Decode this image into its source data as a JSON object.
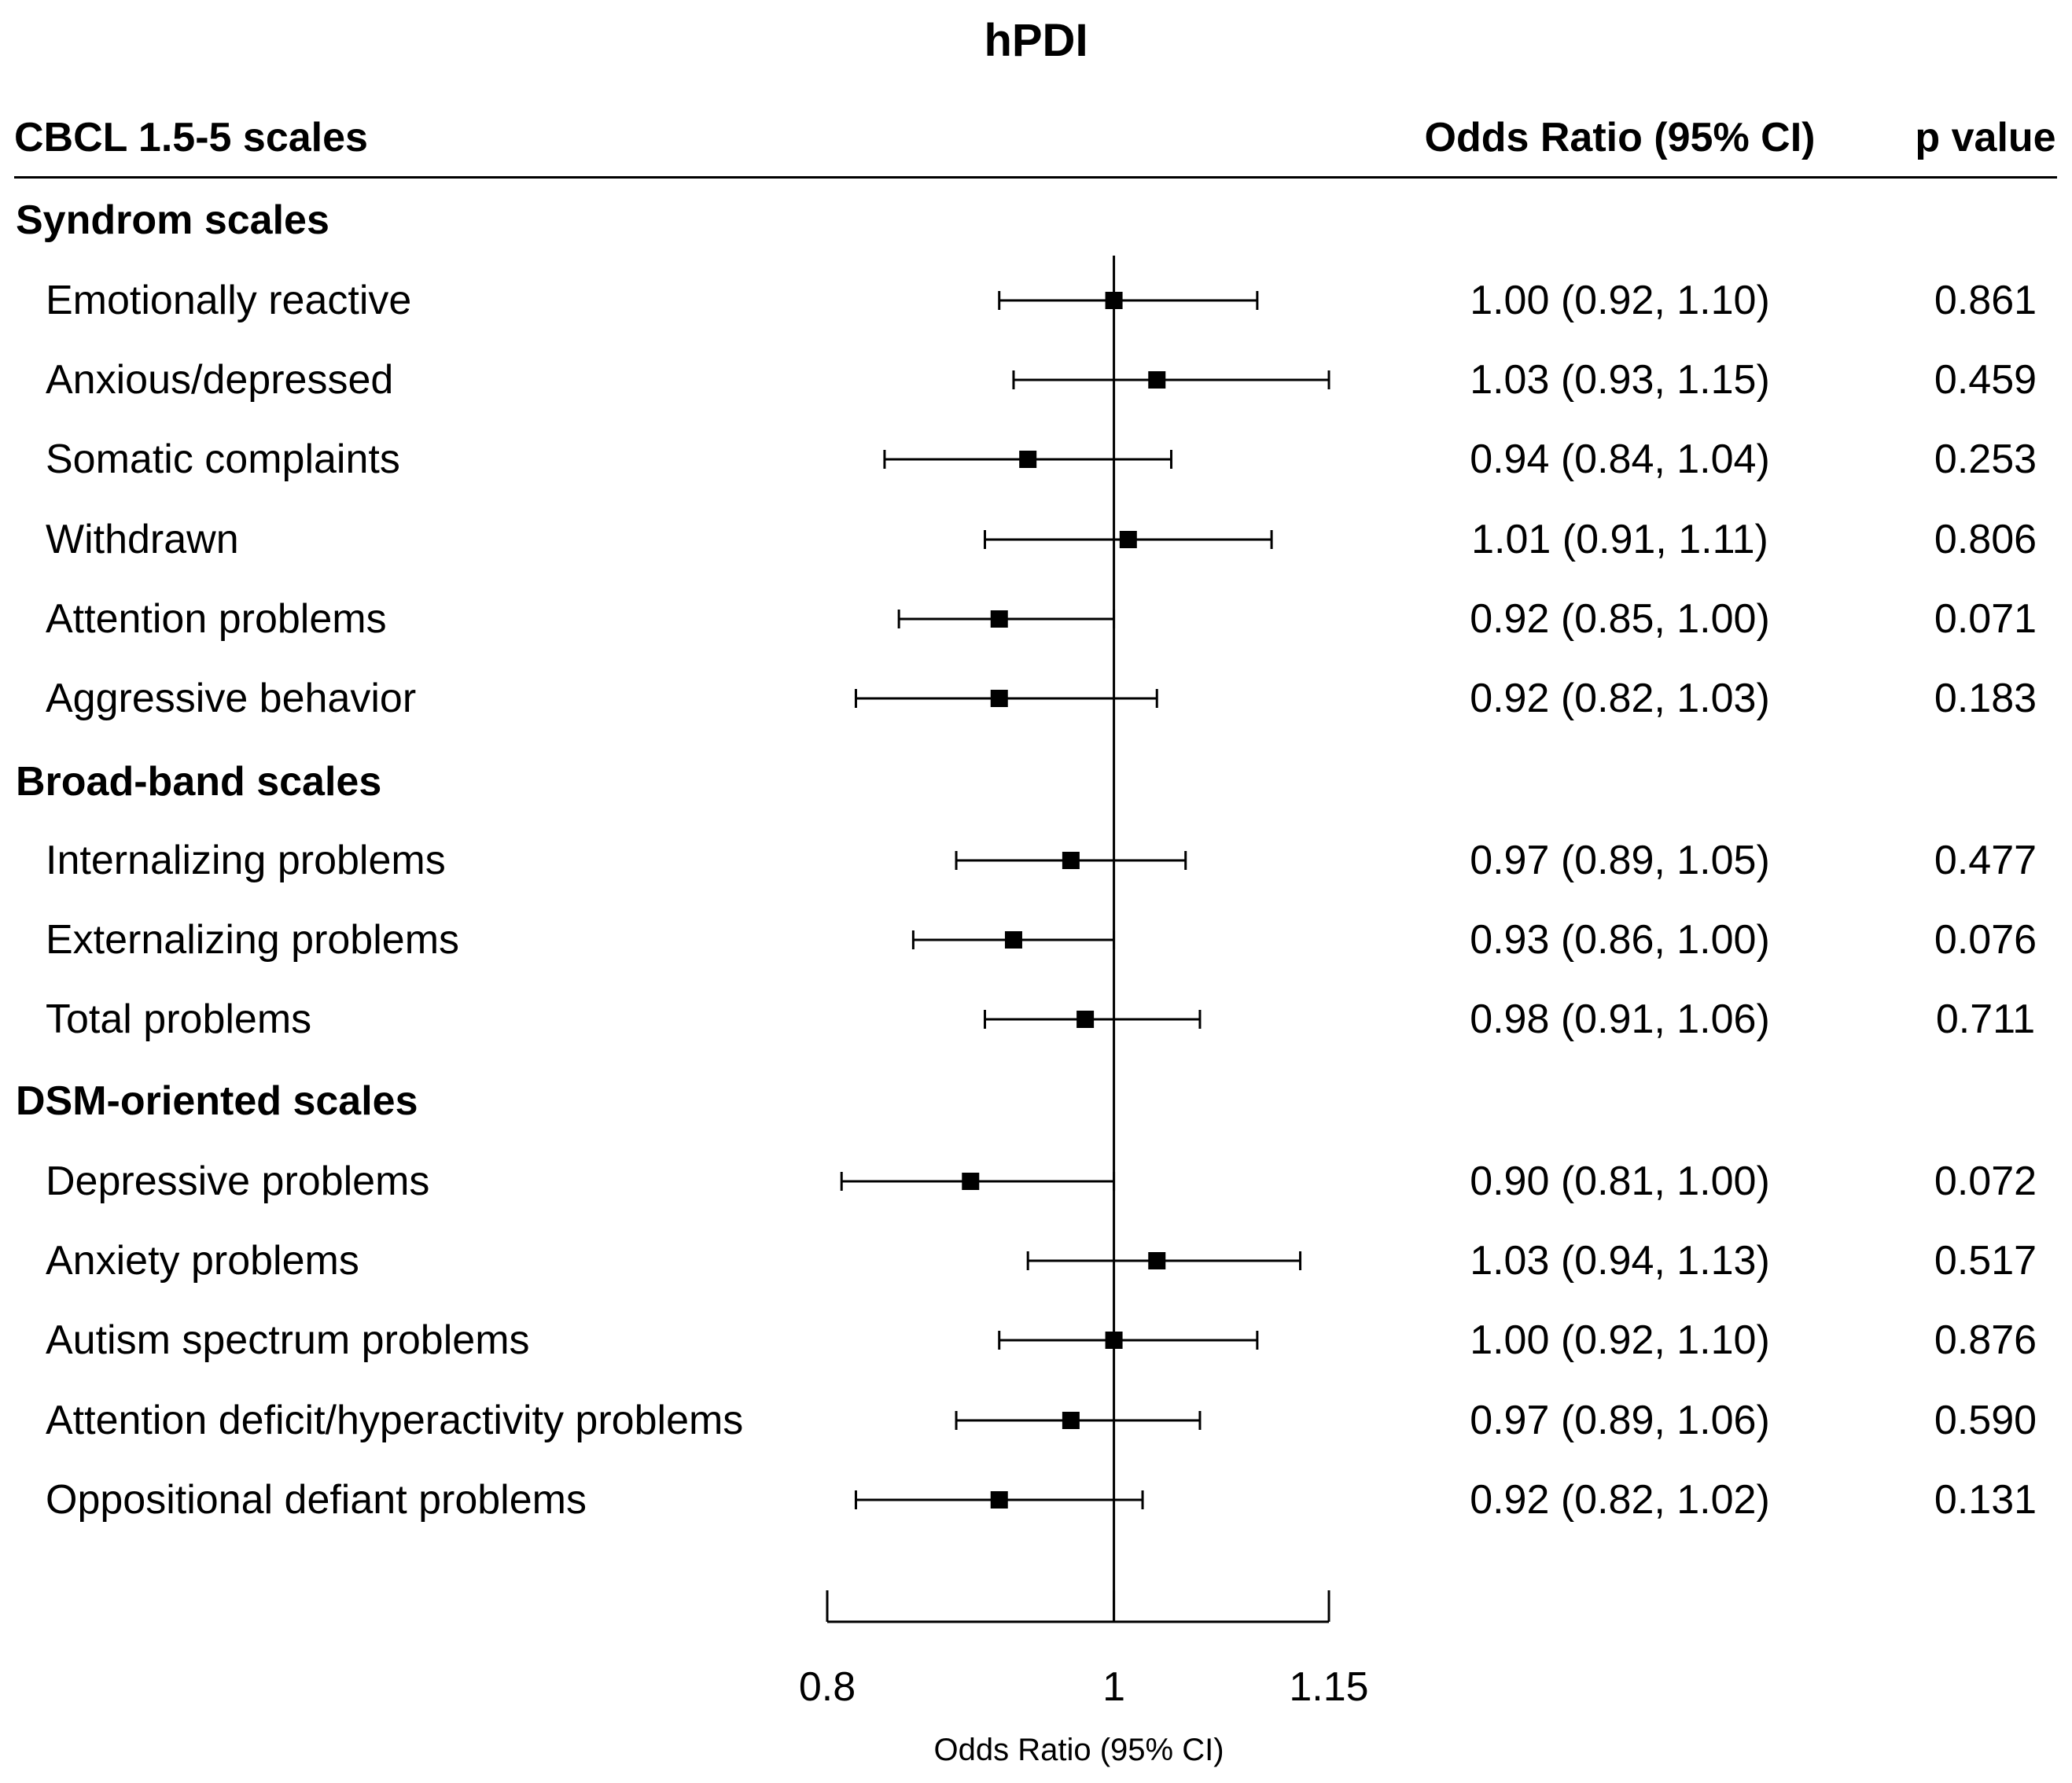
{
  "chart_data": {
    "type": "forest",
    "title": "hPDI",
    "columns": {
      "label": "CBCL 1.5-5 scales",
      "estimate": "Odds Ratio (95% CI)",
      "p": "p value"
    },
    "xlabel": "Odds Ratio (95% CI)",
    "reference_line": 1,
    "xlim": [
      0.8,
      1.15
    ],
    "xticks": [
      {
        "value": 0.8,
        "label": "0.8"
      },
      {
        "value": 1,
        "label": "1"
      },
      {
        "value": 1.15,
        "label": "1.15"
      }
    ],
    "groups": [
      {
        "name": "Syndrom scales",
        "rows": [
          {
            "label": "Emotionally reactive",
            "or": 1.0,
            "lo": 0.92,
            "hi": 1.1,
            "text": "1.00 (0.92, 1.10)",
            "p": "0.861"
          },
          {
            "label": "Anxious/depressed",
            "or": 1.03,
            "lo": 0.93,
            "hi": 1.15,
            "text": "1.03 (0.93, 1.15)",
            "p": "0.459"
          },
          {
            "label": "Somatic complaints",
            "or": 0.94,
            "lo": 0.84,
            "hi": 1.04,
            "text": "0.94 (0.84, 1.04)",
            "p": "0.253"
          },
          {
            "label": "Withdrawn",
            "or": 1.01,
            "lo": 0.91,
            "hi": 1.11,
            "text": "1.01 (0.91, 1.11)",
            "p": "0.806"
          },
          {
            "label": "Attention problems",
            "or": 0.92,
            "lo": 0.85,
            "hi": 1.0,
            "text": "0.92 (0.85, 1.00)",
            "p": "0.071"
          },
          {
            "label": "Aggressive behavior",
            "or": 0.92,
            "lo": 0.82,
            "hi": 1.03,
            "text": "0.92 (0.82, 1.03)",
            "p": "0.183"
          }
        ]
      },
      {
        "name": "Broad-band scales",
        "rows": [
          {
            "label": "Internalizing problems",
            "or": 0.97,
            "lo": 0.89,
            "hi": 1.05,
            "text": "0.97 (0.89, 1.05)",
            "p": "0.477"
          },
          {
            "label": "Externalizing problems",
            "or": 0.93,
            "lo": 0.86,
            "hi": 1.0,
            "text": "0.93 (0.86, 1.00)",
            "p": "0.076"
          },
          {
            "label": "Total problems",
            "or": 0.98,
            "lo": 0.91,
            "hi": 1.06,
            "text": "0.98 (0.91, 1.06)",
            "p": "0.711"
          }
        ]
      },
      {
        "name": "DSM-oriented scales",
        "rows": [
          {
            "label": "Depressive problems",
            "or": 0.9,
            "lo": 0.81,
            "hi": 1.0,
            "text": "0.90 (0.81, 1.00)",
            "p": "0.072"
          },
          {
            "label": "Anxiety problems",
            "or": 1.03,
            "lo": 0.94,
            "hi": 1.13,
            "text": "1.03 (0.94, 1.13)",
            "p": "0.517"
          },
          {
            "label": "Autism spectrum problems",
            "or": 1.0,
            "lo": 0.92,
            "hi": 1.1,
            "text": "1.00 (0.92, 1.10)",
            "p": "0.876"
          },
          {
            "label": "Attention deficit/hyperactivity problems",
            "or": 0.97,
            "lo": 0.89,
            "hi": 1.06,
            "text": "0.97 (0.89, 1.06)",
            "p": "0.590"
          },
          {
            "label": "Oppositional defiant problems",
            "or": 0.92,
            "lo": 0.82,
            "hi": 1.02,
            "text": "0.92 (0.82, 1.02)",
            "p": "0.131"
          }
        ]
      }
    ]
  }
}
